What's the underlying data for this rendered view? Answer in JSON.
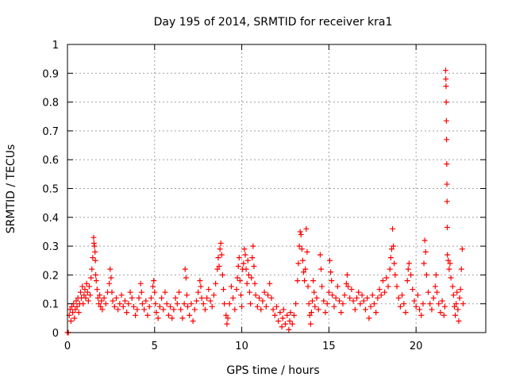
{
  "chart_data": {
    "type": "scatter",
    "title": "Day 195 of 2014, SRMTID for receiver kra1",
    "xlabel": "GPS time / hours",
    "ylabel": "SRMTID / TECUs",
    "xlim": [
      0,
      24
    ],
    "ylim": [
      0,
      1
    ],
    "xticks": [
      0,
      5,
      10,
      15,
      20
    ],
    "xtick_labels": [
      "0",
      "5",
      "10",
      "15",
      "20"
    ],
    "yticks": [
      0,
      0.1,
      0.2,
      0.3,
      0.4,
      0.5,
      0.6,
      0.7,
      0.8,
      0.9,
      1
    ],
    "ytick_labels": [
      "0",
      "0.1",
      "0.2",
      "0.3",
      "0.4",
      "0.5",
      "0.6",
      "0.7",
      "0.8",
      "0.9",
      "1"
    ],
    "grid": true,
    "marker": "+",
    "color": "#ff0000",
    "series": [
      {
        "name": "SRMTID",
        "points": [
          [
            0.0,
            0.0
          ],
          [
            0.05,
            0.0
          ],
          [
            0.1,
            0.06
          ],
          [
            0.15,
            0.08
          ],
          [
            0.2,
            0.04
          ],
          [
            0.25,
            0.09
          ],
          [
            0.3,
            0.07
          ],
          [
            0.35,
            0.1
          ],
          [
            0.4,
            0.05
          ],
          [
            0.45,
            0.08
          ],
          [
            0.5,
            0.11
          ],
          [
            0.55,
            0.09
          ],
          [
            0.6,
            0.12
          ],
          [
            0.65,
            0.07
          ],
          [
            0.7,
            0.1
          ],
          [
            0.75,
            0.14
          ],
          [
            0.8,
            0.12
          ],
          [
            0.85,
            0.16
          ],
          [
            0.9,
            0.1
          ],
          [
            0.95,
            0.13
          ],
          [
            1.0,
            0.15
          ],
          [
            1.05,
            0.12
          ],
          [
            1.1,
            0.17
          ],
          [
            1.15,
            0.14
          ],
          [
            1.2,
            0.11
          ],
          [
            1.25,
            0.16
          ],
          [
            1.3,
            0.13
          ],
          [
            1.35,
            0.19
          ],
          [
            1.4,
            0.22
          ],
          [
            1.45,
            0.26
          ],
          [
            1.5,
            0.33
          ],
          [
            1.52,
            0.31
          ],
          [
            1.55,
            0.3
          ],
          [
            1.58,
            0.28
          ],
          [
            1.6,
            0.25
          ],
          [
            1.62,
            0.2
          ],
          [
            1.65,
            0.18
          ],
          [
            1.7,
            0.15
          ],
          [
            1.75,
            0.12
          ],
          [
            1.8,
            0.1
          ],
          [
            1.85,
            0.13
          ],
          [
            1.9,
            0.09
          ],
          [
            1.95,
            0.11
          ],
          [
            2.0,
            0.08
          ],
          [
            2.1,
            0.12
          ],
          [
            2.2,
            0.1
          ],
          [
            2.3,
            0.14
          ],
          [
            2.4,
            0.17
          ],
          [
            2.45,
            0.22
          ],
          [
            2.5,
            0.19
          ],
          [
            2.55,
            0.14
          ],
          [
            2.6,
            0.11
          ],
          [
            2.7,
            0.09
          ],
          [
            2.8,
            0.12
          ],
          [
            2.9,
            0.08
          ],
          [
            3.0,
            0.1
          ],
          [
            3.1,
            0.13
          ],
          [
            3.2,
            0.09
          ],
          [
            3.3,
            0.11
          ],
          [
            3.4,
            0.07
          ],
          [
            3.5,
            0.1
          ],
          [
            3.6,
            0.14
          ],
          [
            3.7,
            0.12
          ],
          [
            3.8,
            0.09
          ],
          [
            3.9,
            0.06
          ],
          [
            4.0,
            0.08
          ],
          [
            4.1,
            0.12
          ],
          [
            4.2,
            0.17
          ],
          [
            4.25,
            0.14
          ],
          [
            4.3,
            0.1
          ],
          [
            4.4,
            0.08
          ],
          [
            4.5,
            0.11
          ],
          [
            4.6,
            0.06
          ],
          [
            4.7,
            0.09
          ],
          [
            4.8,
            0.12
          ],
          [
            4.9,
            0.16
          ],
          [
            4.95,
            0.18
          ],
          [
            5.0,
            0.14
          ],
          [
            5.05,
            0.1
          ],
          [
            5.1,
            0.07
          ],
          [
            5.2,
            0.05
          ],
          [
            5.3,
            0.09
          ],
          [
            5.4,
            0.12
          ],
          [
            5.5,
            0.08
          ],
          [
            5.6,
            0.14
          ],
          [
            5.7,
            0.1
          ],
          [
            5.8,
            0.06
          ],
          [
            5.9,
            0.09
          ],
          [
            6.0,
            0.05
          ],
          [
            6.1,
            0.08
          ],
          [
            6.2,
            0.12
          ],
          [
            6.3,
            0.1
          ],
          [
            6.4,
            0.14
          ],
          [
            6.5,
            0.08
          ],
          [
            6.6,
            0.05
          ],
          [
            6.7,
            0.1
          ],
          [
            6.75,
            0.22
          ],
          [
            6.8,
            0.19
          ],
          [
            6.85,
            0.13
          ],
          [
            6.9,
            0.09
          ],
          [
            7.0,
            0.06
          ],
          [
            7.1,
            0.1
          ],
          [
            7.2,
            0.04
          ],
          [
            7.3,
            0.08
          ],
          [
            7.4,
            0.11
          ],
          [
            7.5,
            0.14
          ],
          [
            7.6,
            0.18
          ],
          [
            7.65,
            0.16
          ],
          [
            7.7,
            0.12
          ],
          [
            7.8,
            0.1
          ],
          [
            7.9,
            0.08
          ],
          [
            8.0,
            0.12
          ],
          [
            8.1,
            0.15
          ],
          [
            8.2,
            0.11
          ],
          [
            8.3,
            0.09
          ],
          [
            8.4,
            0.13
          ],
          [
            8.5,
            0.17
          ],
          [
            8.6,
            0.22
          ],
          [
            8.65,
            0.26
          ],
          [
            8.7,
            0.23
          ],
          [
            8.75,
            0.29
          ],
          [
            8.8,
            0.31
          ],
          [
            8.85,
            0.27
          ],
          [
            8.9,
            0.2
          ],
          [
            8.95,
            0.15
          ],
          [
            9.0,
            0.1
          ],
          [
            9.1,
            0.06
          ],
          [
            9.15,
            0.03
          ],
          [
            9.2,
            0.05
          ],
          [
            9.3,
            0.1
          ],
          [
            9.4,
            0.16
          ],
          [
            9.5,
            0.12
          ],
          [
            9.6,
            0.08
          ],
          [
            9.7,
            0.15
          ],
          [
            9.75,
            0.19
          ],
          [
            9.8,
            0.23
          ],
          [
            9.85,
            0.26
          ],
          [
            9.9,
            0.18
          ],
          [
            9.95,
            0.13
          ],
          [
            10.0,
            0.09
          ],
          [
            10.05,
            0.22
          ],
          [
            10.1,
            0.24
          ],
          [
            10.15,
            0.29
          ],
          [
            10.2,
            0.27
          ],
          [
            10.25,
            0.22
          ],
          [
            10.3,
            0.17
          ],
          [
            10.35,
            0.25
          ],
          [
            10.4,
            0.2
          ],
          [
            10.45,
            0.14
          ],
          [
            10.5,
            0.1
          ],
          [
            10.55,
            0.19
          ],
          [
            10.6,
            0.26
          ],
          [
            10.65,
            0.3
          ],
          [
            10.7,
            0.23
          ],
          [
            10.75,
            0.17
          ],
          [
            10.8,
            0.13
          ],
          [
            10.9,
            0.09
          ],
          [
            11.0,
            0.12
          ],
          [
            11.1,
            0.08
          ],
          [
            11.2,
            0.11
          ],
          [
            11.3,
            0.14
          ],
          [
            11.4,
            0.09
          ],
          [
            11.5,
            0.13
          ],
          [
            11.6,
            0.17
          ],
          [
            11.7,
            0.12
          ],
          [
            11.8,
            0.08
          ],
          [
            11.9,
            0.06
          ],
          [
            12.0,
            0.09
          ],
          [
            12.1,
            0.04
          ],
          [
            12.2,
            0.07
          ],
          [
            12.3,
            0.02
          ],
          [
            12.35,
            0.05
          ],
          [
            12.4,
            0.08
          ],
          [
            12.5,
            0.03
          ],
          [
            12.6,
            0.06
          ],
          [
            12.7,
            0.01
          ],
          [
            12.75,
            0.04
          ],
          [
            12.8,
            0.07
          ],
          [
            12.9,
            0.03
          ],
          [
            13.0,
            0.06
          ],
          [
            13.1,
            0.1
          ],
          [
            13.2,
            0.18
          ],
          [
            13.25,
            0.24
          ],
          [
            13.3,
            0.3
          ],
          [
            13.35,
            0.35
          ],
          [
            13.4,
            0.34
          ],
          [
            13.45,
            0.29
          ],
          [
            13.5,
            0.25
          ],
          [
            13.55,
            0.21
          ],
          [
            13.6,
            0.18
          ],
          [
            13.65,
            0.22
          ],
          [
            13.7,
            0.36
          ],
          [
            13.75,
            0.28
          ],
          [
            13.8,
            0.16
          ],
          [
            13.85,
            0.1
          ],
          [
            13.9,
            0.06
          ],
          [
            13.95,
            0.03
          ],
          [
            14.0,
            0.07
          ],
          [
            14.05,
            0.11
          ],
          [
            14.1,
            0.18
          ],
          [
            14.15,
            0.14
          ],
          [
            14.2,
            0.09
          ],
          [
            14.3,
            0.12
          ],
          [
            14.4,
            0.08
          ],
          [
            14.5,
            0.27
          ],
          [
            14.55,
            0.22
          ],
          [
            14.6,
            0.16
          ],
          [
            14.7,
            0.11
          ],
          [
            14.8,
            0.07
          ],
          [
            14.9,
            0.1
          ],
          [
            15.0,
            0.14
          ],
          [
            15.05,
            0.25
          ],
          [
            15.1,
            0.21
          ],
          [
            15.15,
            0.18
          ],
          [
            15.2,
            0.13
          ],
          [
            15.3,
            0.09
          ],
          [
            15.4,
            0.12
          ],
          [
            15.5,
            0.16
          ],
          [
            15.6,
            0.11
          ],
          [
            15.7,
            0.07
          ],
          [
            15.8,
            0.1
          ],
          [
            15.9,
            0.13
          ],
          [
            16.0,
            0.17
          ],
          [
            16.05,
            0.2
          ],
          [
            16.1,
            0.16
          ],
          [
            16.2,
            0.12
          ],
          [
            16.3,
            0.15
          ],
          [
            16.4,
            0.11
          ],
          [
            16.5,
            0.08
          ],
          [
            16.6,
            0.12
          ],
          [
            16.7,
            0.14
          ],
          [
            16.8,
            0.1
          ],
          [
            16.9,
            0.13
          ],
          [
            17.0,
            0.11
          ],
          [
            17.1,
            0.08
          ],
          [
            17.2,
            0.12
          ],
          [
            17.3,
            0.05
          ],
          [
            17.4,
            0.09
          ],
          [
            17.5,
            0.13
          ],
          [
            17.6,
            0.1
          ],
          [
            17.7,
            0.07
          ],
          [
            17.8,
            0.12
          ],
          [
            17.9,
            0.15
          ],
          [
            18.0,
            0.13
          ],
          [
            18.1,
            0.18
          ],
          [
            18.2,
            0.14
          ],
          [
            18.3,
            0.19
          ],
          [
            18.4,
            0.16
          ],
          [
            18.5,
            0.22
          ],
          [
            18.55,
            0.26
          ],
          [
            18.6,
            0.29
          ],
          [
            18.65,
            0.36
          ],
          [
            18.7,
            0.3
          ],
          [
            18.75,
            0.24
          ],
          [
            18.8,
            0.2
          ],
          [
            18.9,
            0.16
          ],
          [
            19.0,
            0.12
          ],
          [
            19.1,
            0.09
          ],
          [
            19.2,
            0.13
          ],
          [
            19.3,
            0.1
          ],
          [
            19.4,
            0.07
          ],
          [
            19.5,
            0.18
          ],
          [
            19.55,
            0.22
          ],
          [
            19.6,
            0.24
          ],
          [
            19.7,
            0.2
          ],
          [
            19.8,
            0.15
          ],
          [
            19.9,
            0.11
          ],
          [
            20.0,
            0.09
          ],
          [
            20.1,
            0.13
          ],
          [
            20.2,
            0.08
          ],
          [
            20.3,
            0.06
          ],
          [
            20.4,
            0.1
          ],
          [
            20.45,
            0.24
          ],
          [
            20.5,
            0.32
          ],
          [
            20.55,
            0.28
          ],
          [
            20.6,
            0.2
          ],
          [
            20.7,
            0.14
          ],
          [
            20.8,
            0.1
          ],
          [
            20.9,
            0.08
          ],
          [
            21.0,
            0.12
          ],
          [
            21.1,
            0.16
          ],
          [
            21.15,
            0.2
          ],
          [
            21.2,
            0.14
          ],
          [
            21.3,
            0.1
          ],
          [
            21.4,
            0.07
          ],
          [
            21.5,
            0.11
          ],
          [
            21.6,
            0.06
          ],
          [
            21.65,
            0.09
          ],
          [
            21.7,
            0.91
          ],
          [
            21.71,
            0.88
          ],
          [
            21.72,
            0.855
          ],
          [
            21.73,
            0.8
          ],
          [
            21.74,
            0.735
          ],
          [
            21.75,
            0.67
          ],
          [
            21.76,
            0.585
          ],
          [
            21.77,
            0.515
          ],
          [
            21.78,
            0.455
          ],
          [
            21.79,
            0.365
          ],
          [
            21.8,
            0.27
          ],
          [
            21.85,
            0.25
          ],
          [
            21.9,
            0.22
          ],
          [
            21.95,
            0.24
          ],
          [
            22.0,
            0.19
          ],
          [
            22.1,
            0.16
          ],
          [
            22.15,
            0.13
          ],
          [
            22.2,
            0.09
          ],
          [
            22.25,
            0.06
          ],
          [
            22.3,
            0.1
          ],
          [
            22.35,
            0.14
          ],
          [
            22.4,
            0.08
          ],
          [
            22.45,
            0.04
          ],
          [
            22.5,
            0.12
          ],
          [
            22.55,
            0.15
          ],
          [
            22.6,
            0.22
          ],
          [
            22.65,
            0.29
          ],
          [
            22.7,
            0.1
          ]
        ]
      }
    ]
  }
}
